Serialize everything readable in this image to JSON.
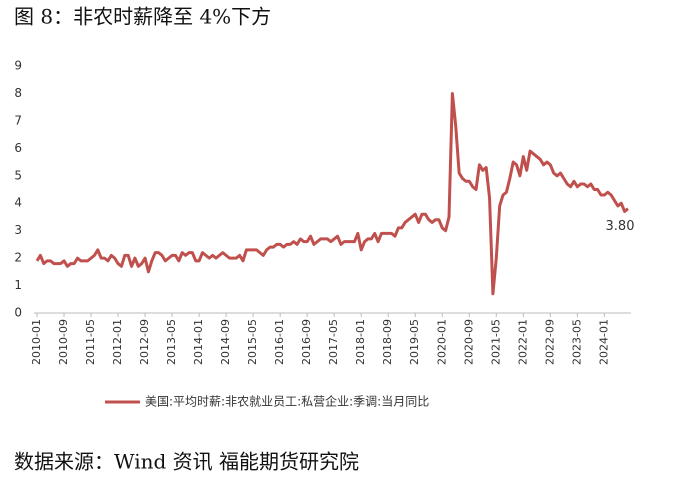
{
  "chart_data": {
    "type": "line",
    "title": "图 8：非农时薪降至 4%下方",
    "source": "数据来源：Wind 资讯 福能期货研究院",
    "categories": [
      "2010-01",
      null,
      null,
      null,
      null,
      null,
      null,
      null,
      "2010-09",
      null,
      null,
      null,
      null,
      null,
      null,
      null,
      "2011-05",
      null,
      null,
      null,
      null,
      null,
      null,
      null,
      "2012-01",
      null,
      null,
      null,
      null,
      null,
      null,
      null,
      "2012-09",
      null,
      null,
      null,
      null,
      null,
      null,
      null,
      "2013-05",
      null,
      null,
      null,
      null,
      null,
      null,
      null,
      "2014-01",
      null,
      null,
      null,
      null,
      null,
      null,
      null,
      "2014-09",
      null,
      null,
      null,
      null,
      null,
      null,
      null,
      "2015-05",
      null,
      null,
      null,
      null,
      null,
      null,
      null,
      "2016-01",
      null,
      null,
      null,
      null,
      null,
      null,
      null,
      "2016-09",
      null,
      null,
      null,
      null,
      null,
      null,
      null,
      "2017-05",
      null,
      null,
      null,
      null,
      null,
      null,
      null,
      "2018-01",
      null,
      null,
      null,
      null,
      null,
      null,
      null,
      "2018-09",
      null,
      null,
      null,
      null,
      null,
      null,
      null,
      "2019-05",
      null,
      null,
      null,
      null,
      null,
      null,
      null,
      "2020-01",
      null,
      null,
      null,
      null,
      null,
      null,
      null,
      "2020-09",
      null,
      null,
      null,
      null,
      null,
      null,
      null,
      "2021-05",
      null,
      null,
      null,
      null,
      null,
      null,
      null,
      "2022-01",
      null,
      null,
      null,
      null,
      null,
      null,
      null,
      "2022-09",
      null,
      null,
      null,
      null,
      null,
      null,
      null,
      "2023-05",
      null,
      null,
      null,
      null,
      null,
      null,
      null,
      "2024-01",
      null,
      null,
      null,
      null,
      null,
      null,
      null
    ],
    "series": [
      {
        "name": "美国:平均时薪:非农就业员工:私营企业:季调:当月同比",
        "color": "#c0504d",
        "values": [
          1.9,
          2.1,
          1.8,
          1.9,
          1.9,
          1.8,
          1.8,
          1.8,
          1.9,
          1.7,
          1.8,
          1.8,
          2.0,
          1.9,
          1.9,
          1.9,
          2.0,
          2.1,
          2.3,
          2.0,
          2.0,
          1.9,
          2.1,
          2.0,
          1.8,
          1.7,
          2.1,
          2.1,
          1.7,
          2.0,
          1.7,
          1.8,
          2.0,
          1.5,
          1.9,
          2.2,
          2.2,
          2.1,
          1.9,
          2.0,
          2.1,
          2.1,
          1.9,
          2.2,
          2.1,
          2.2,
          2.2,
          1.9,
          1.9,
          2.2,
          2.1,
          2.0,
          2.1,
          2.0,
          2.1,
          2.2,
          2.1,
          2.0,
          2.0,
          2.0,
          2.1,
          1.9,
          2.3,
          2.3,
          2.3,
          2.3,
          2.2,
          2.1,
          2.3,
          2.4,
          2.4,
          2.5,
          2.5,
          2.4,
          2.5,
          2.5,
          2.6,
          2.5,
          2.7,
          2.6,
          2.6,
          2.8,
          2.5,
          2.6,
          2.7,
          2.7,
          2.7,
          2.6,
          2.7,
          2.8,
          2.5,
          2.6,
          2.6,
          2.6,
          2.6,
          2.9,
          2.3,
          2.6,
          2.7,
          2.7,
          2.9,
          2.6,
          2.9,
          2.9,
          2.9,
          2.9,
          2.8,
          3.1,
          3.1,
          3.3,
          3.4,
          3.5,
          3.6,
          3.3,
          3.6,
          3.6,
          3.4,
          3.3,
          3.4,
          3.4,
          3.1,
          3.0,
          3.5,
          8.0,
          6.8,
          5.1,
          4.9,
          4.8,
          4.8,
          4.6,
          4.5,
          5.4,
          5.2,
          5.3,
          4.2,
          0.7,
          2.0,
          3.9,
          4.3,
          4.4,
          4.9,
          5.5,
          5.4,
          5.0,
          5.7,
          5.2,
          5.9,
          5.8,
          5.7,
          5.6,
          5.4,
          5.5,
          5.4,
          5.1,
          5.0,
          5.1,
          4.9,
          4.7,
          4.6,
          4.8,
          4.6,
          4.7,
          4.7,
          4.6,
          4.7,
          4.5,
          4.5,
          4.3,
          4.3,
          4.4,
          4.3,
          4.1,
          3.9,
          4.0,
          3.7,
          3.8
        ],
        "value_labels": [
          null,
          null,
          null,
          null,
          null,
          null,
          null,
          null,
          null,
          null,
          null,
          null,
          null,
          null,
          null,
          null,
          null,
          null,
          null,
          null,
          null,
          null,
          null,
          null,
          null,
          null,
          null,
          null,
          null,
          null,
          null,
          null,
          null,
          null,
          null,
          null,
          null,
          null,
          null,
          null,
          null,
          null,
          null,
          null,
          null,
          null,
          null,
          null,
          null,
          null,
          null,
          null,
          null,
          null,
          null,
          null,
          null,
          null,
          null,
          null,
          null,
          null,
          null,
          null,
          null,
          null,
          null,
          null,
          null,
          null,
          null,
          null,
          null,
          null,
          null,
          null,
          null,
          null,
          null,
          null,
          null,
          null,
          null,
          null,
          null,
          null,
          null,
          null,
          null,
          null,
          null,
          null,
          null,
          null,
          null,
          null,
          null,
          null,
          null,
          null,
          null,
          null,
          null,
          null,
          null,
          null,
          null,
          null,
          null,
          null,
          null,
          null,
          null,
          null,
          null,
          null,
          null,
          null,
          null,
          null,
          null,
          null,
          null,
          null,
          null,
          null,
          null,
          null,
          null,
          null,
          null,
          null,
          null,
          null,
          null,
          null,
          null,
          null,
          null,
          null,
          null,
          null,
          null,
          null,
          null,
          null,
          null,
          null,
          null,
          null,
          null,
          null,
          null,
          null,
          null,
          null,
          null,
          null,
          null,
          null,
          null,
          null,
          null,
          null,
          null,
          null,
          null,
          null,
          null,
          null,
          null,
          null,
          null,
          null,
          null,
          "3.80"
        ]
      }
    ],
    "ylim": [
      0,
      9
    ],
    "yticks": [
      0,
      1,
      2,
      3,
      4,
      5,
      6,
      7,
      8,
      9
    ],
    "grid": false
  }
}
